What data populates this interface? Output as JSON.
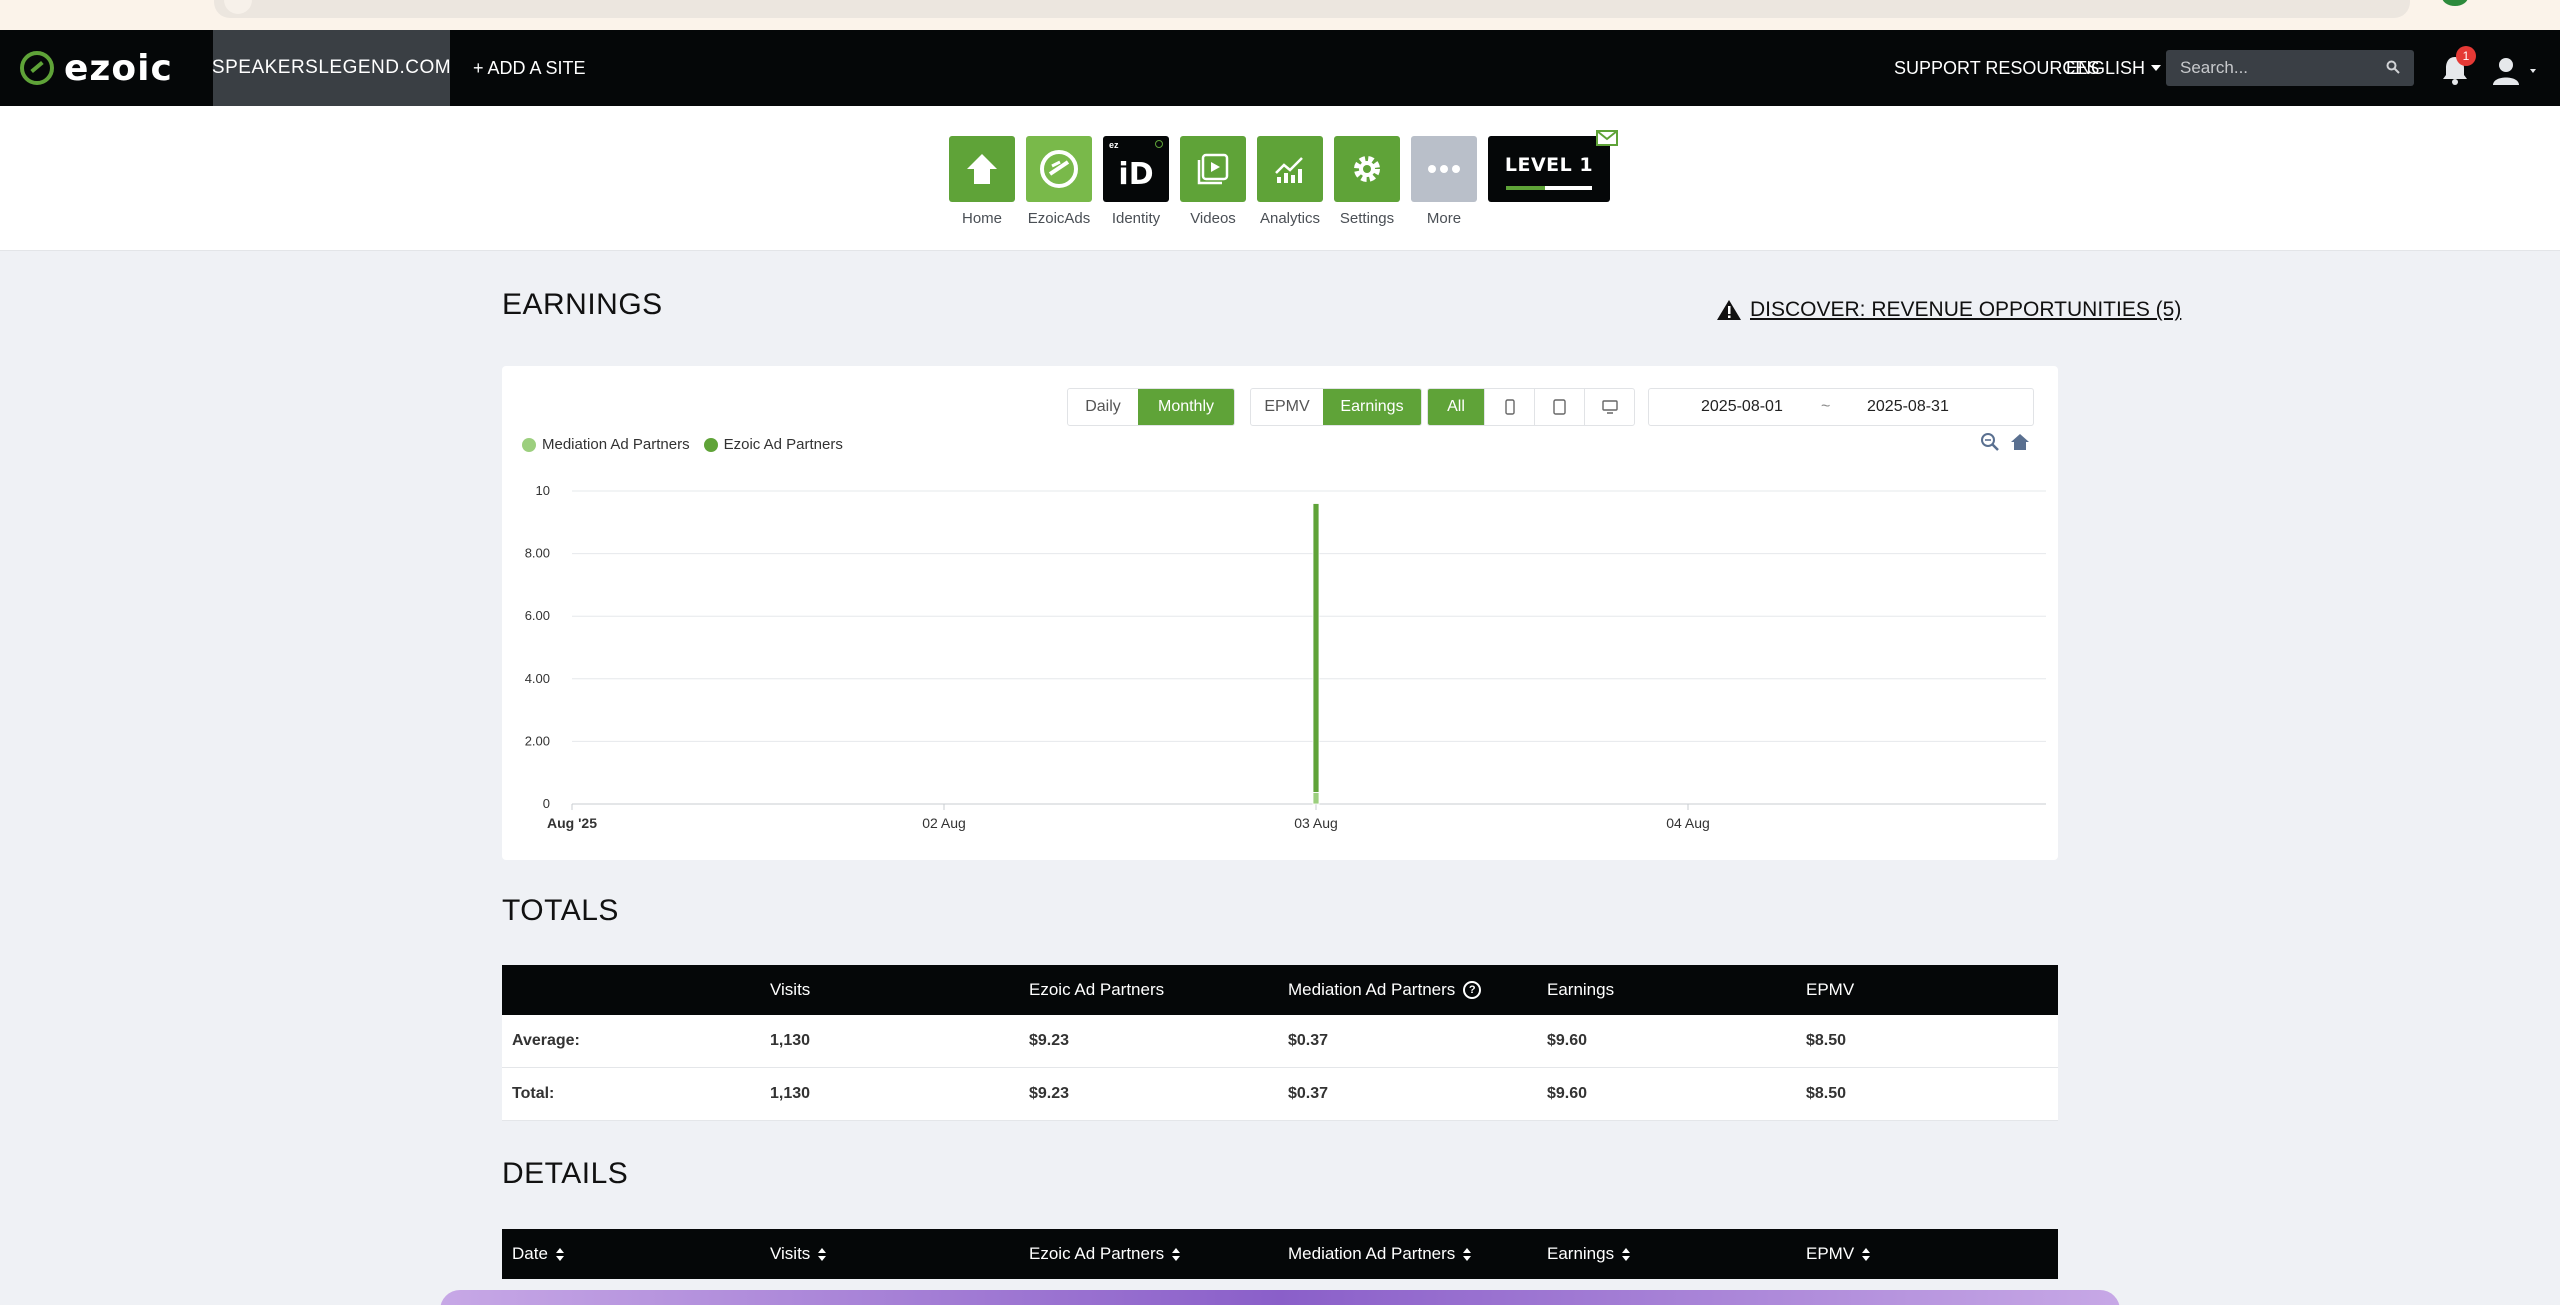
{
  "nav": {
    "logo": "ezoic",
    "site": "SPEAKERSLEGEND.COM",
    "add_site": "+ ADD A SITE",
    "support": "SUPPORT RESOURCES",
    "language": "ENGLISH",
    "search_placeholder": "Search...",
    "notification_count": "1"
  },
  "apps": [
    {
      "label": "Home",
      "icon": "home-icon"
    },
    {
      "label": "EzoicAds",
      "icon": "ezoicads-icon"
    },
    {
      "label": "Identity",
      "icon": "identity-icon",
      "tile_text": "iD",
      "tile_small": "ez"
    },
    {
      "label": "Videos",
      "icon": "video-icon"
    },
    {
      "label": "Analytics",
      "icon": "analytics-icon"
    },
    {
      "label": "Settings",
      "icon": "gear-icon"
    },
    {
      "label": "More",
      "icon": "more-icon"
    }
  ],
  "level": {
    "label": "LEVEL 1",
    "progress": 0.45
  },
  "earnings": {
    "title": "EARNINGS",
    "discover": "DISCOVER: REVENUE OPPORTUNITIES (5)",
    "period": {
      "daily": "Daily",
      "monthly": "Monthly",
      "selected": "Monthly"
    },
    "metric": {
      "epmv": "EPMV",
      "earnings": "Earnings",
      "selected": "Earnings"
    },
    "device": {
      "all": "All",
      "selected": "All"
    },
    "date_from": "2025-08-01",
    "date_sep": "~",
    "date_to": "2025-08-31"
  },
  "chart_data": {
    "type": "bar",
    "stacked": true,
    "title": "",
    "xlabel": "",
    "ylabel": "",
    "ylim": [
      0,
      10
    ],
    "y_ticks": [
      "0",
      "2.00",
      "4.00",
      "6.00",
      "8.00",
      "10"
    ],
    "x_ticks": [
      "Aug '25",
      "02 Aug",
      "03 Aug",
      "04 Aug"
    ],
    "x_domain_days": [
      1,
      5
    ],
    "grid": true,
    "legend_position": "top-left",
    "series": [
      {
        "name": "Mediation Ad Partners",
        "color": "#9ccf7e",
        "points": [
          {
            "x": "03 Aug",
            "day": 3,
            "y": 0.37
          }
        ]
      },
      {
        "name": "Ezoic Ad Partners",
        "color": "#5fa338",
        "points": [
          {
            "x": "03 Aug",
            "day": 3,
            "y": 9.23
          }
        ]
      }
    ]
  },
  "totals": {
    "title": "TOTALS",
    "columns": [
      "",
      "Visits",
      "Ezoic Ad Partners",
      "Mediation Ad Partners",
      "Earnings",
      "EPMV"
    ],
    "rows": [
      [
        "Average:",
        "1,130",
        "$9.23",
        "$0.37",
        "$9.60",
        "$8.50"
      ],
      [
        "Total:",
        "1,130",
        "$9.23",
        "$0.37",
        "$9.60",
        "$8.50"
      ]
    ]
  },
  "details": {
    "title": "DETAILS",
    "columns": [
      "Date",
      "Visits",
      "Ezoic Ad Partners",
      "Mediation Ad Partners",
      "Earnings",
      "EPMV"
    ]
  }
}
